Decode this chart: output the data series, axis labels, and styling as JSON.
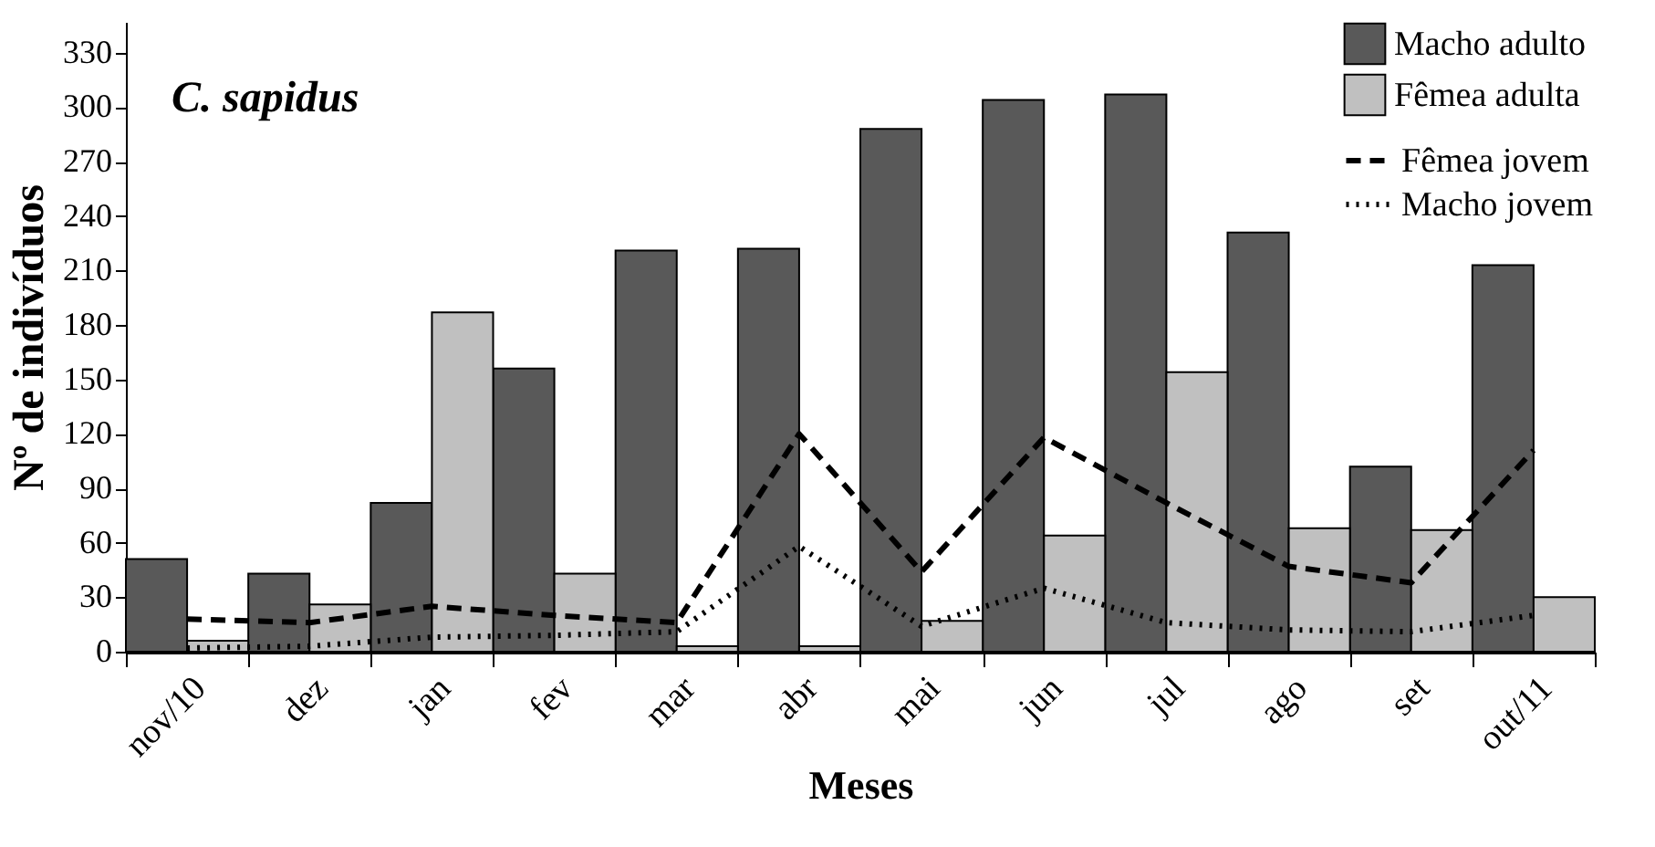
{
  "chart_data": {
    "type": "bar",
    "title": "C. sapidus",
    "xlabel": "Meses",
    "ylabel": "Nº de indivíduos",
    "categories": [
      "nov/10",
      "dez",
      "jan",
      "fev",
      "mar",
      "abr",
      "mai",
      "jun",
      "jul",
      "ago",
      "set",
      "out/11"
    ],
    "series": [
      {
        "name": "Macho adulto",
        "color": "#595959",
        "values": [
          51,
          43,
          82,
          156,
          221,
          222,
          288,
          304,
          307,
          231,
          102,
          213
        ]
      },
      {
        "name": "Fêmea adulta",
        "color": "#c0c0c0",
        "values": [
          6,
          26,
          187,
          43,
          3,
          3,
          17,
          64,
          154,
          68,
          67,
          30
        ]
      },
      {
        "name": "Fêmea jovem",
        "type": "line",
        "color": "#000000",
        "line_style": "dashed",
        "values": [
          18,
          16,
          25,
          20,
          16,
          120,
          44,
          118,
          82,
          47,
          38,
          111
        ]
      },
      {
        "name": "Macho jovem",
        "type": "line",
        "color": "#000000",
        "line_style": "dotted",
        "values": [
          2,
          3,
          8,
          9,
          11,
          58,
          14,
          35,
          16,
          12,
          11,
          20
        ]
      }
    ],
    "ylim": [
      0,
      347
    ],
    "yticks": [
      0,
      30,
      60,
      90,
      120,
      150,
      180,
      210,
      240,
      270,
      300,
      330
    ],
    "grid": false,
    "legend": "top right",
    "marker": "none"
  }
}
